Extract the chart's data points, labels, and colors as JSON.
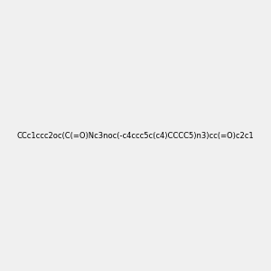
{
  "smiles": "CCc1ccc2oc(C(=O)Nc3noc(-c4ccc5c(c4)CCCC5)n3)cc(=O)c2c1",
  "image_size": 300,
  "background_color": "#f0f0f0",
  "bond_color": "#000000",
  "atom_colors": {
    "O": "#ff0000",
    "N": "#0000ff"
  }
}
